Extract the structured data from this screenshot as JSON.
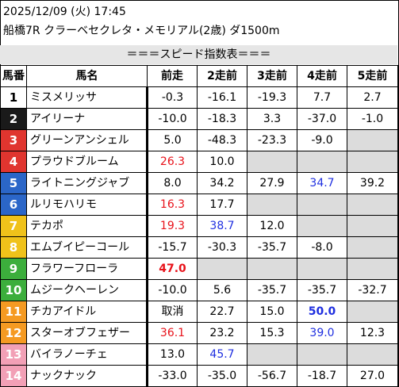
{
  "header": {
    "datetime": "2025/12/09 (火) 17:45",
    "race": "船橋7R クラーベセクレタ・メモリアル(2歳) ダ1500m"
  },
  "banner": "＝＝＝スピード指数表＝＝＝",
  "columns": [
    "馬番",
    "馬名",
    "前走",
    "2走前",
    "3走前",
    "4走前",
    "5走前"
  ],
  "colors": {
    "red": "#e8121a",
    "blue": "#1f2fe0",
    "gray": "#dcdcdc"
  },
  "rows": [
    {
      "num": "1",
      "name": "ミスメリッサ",
      "bg": "#ffffff",
      "fg": "#000000",
      "vals": [
        "-0.3",
        "-16.1",
        "-19.3",
        "7.7",
        "2.7"
      ],
      "styles": [
        "",
        "",
        "",
        "",
        ""
      ]
    },
    {
      "num": "2",
      "name": "アイリーナ",
      "bg": "#1a1a1a",
      "fg": "#ffffff",
      "vals": [
        "-10.0",
        "-18.3",
        "3.3",
        "-37.0",
        "-1.0"
      ],
      "styles": [
        "",
        "",
        "",
        "",
        ""
      ]
    },
    {
      "num": "3",
      "name": "グリーンアンシェル",
      "bg": "#e0352f",
      "fg": "#ffffff",
      "vals": [
        "5.0",
        "-48.3",
        "-23.3",
        "-9.0",
        ""
      ],
      "styles": [
        "",
        "",
        "",
        "",
        "gray"
      ]
    },
    {
      "num": "4",
      "name": "プラウドブルーム",
      "bg": "#e0352f",
      "fg": "#ffffff",
      "vals": [
        "26.3",
        "10.0",
        "",
        "",
        ""
      ],
      "styles": [
        "red",
        "",
        "gray",
        "gray",
        "gray"
      ]
    },
    {
      "num": "5",
      "name": "ライトニングジャブ",
      "bg": "#2b66c8",
      "fg": "#ffffff",
      "vals": [
        "8.0",
        "34.2",
        "27.9",
        "34.7",
        "39.2"
      ],
      "styles": [
        "",
        "",
        "",
        "blue",
        ""
      ]
    },
    {
      "num": "6",
      "name": "ルリモハリモ",
      "bg": "#2b66c8",
      "fg": "#ffffff",
      "vals": [
        "16.3",
        "17.7",
        "",
        "",
        ""
      ],
      "styles": [
        "red",
        "",
        "gray",
        "gray",
        "gray"
      ]
    },
    {
      "num": "7",
      "name": "テカポ",
      "bg": "#f0c21a",
      "fg": "#ffffff",
      "vals": [
        "19.3",
        "38.7",
        "12.0",
        "",
        ""
      ],
      "styles": [
        "red",
        "blue",
        "",
        "gray",
        "gray"
      ]
    },
    {
      "num": "8",
      "name": "エムブイピーコール",
      "bg": "#f0c21a",
      "fg": "#ffffff",
      "vals": [
        "-15.7",
        "-30.3",
        "-35.7",
        "-8.0",
        ""
      ],
      "styles": [
        "",
        "",
        "",
        "",
        "gray"
      ]
    },
    {
      "num": "9",
      "name": "フラワーフローラ",
      "bg": "#3cae3c",
      "fg": "#ffffff",
      "vals": [
        "47.0",
        "",
        "",
        "",
        ""
      ],
      "styles": [
        "red bold",
        "gray",
        "gray",
        "gray",
        "gray"
      ]
    },
    {
      "num": "10",
      "name": "ムジークヘーレン",
      "bg": "#3cae3c",
      "fg": "#ffffff",
      "vals": [
        "-10.0",
        "5.6",
        "-35.7",
        "-35.7",
        "-32.7"
      ],
      "styles": [
        "",
        "",
        "",
        "",
        ""
      ]
    },
    {
      "num": "11",
      "name": "チカアイドル",
      "bg": "#f59a22",
      "fg": "#ffffff",
      "vals": [
        "取消",
        "22.7",
        "15.0",
        "50.0",
        ""
      ],
      "styles": [
        "",
        "",
        "",
        "blue bold",
        "gray"
      ]
    },
    {
      "num": "12",
      "name": "スターオブフェザー",
      "bg": "#f59a22",
      "fg": "#ffffff",
      "vals": [
        "36.1",
        "23.2",
        "15.3",
        "39.0",
        "12.3"
      ],
      "styles": [
        "red",
        "",
        "",
        "blue",
        ""
      ]
    },
    {
      "num": "13",
      "name": "バイラノーチェ",
      "bg": "#f2a0b6",
      "fg": "#ffffff",
      "vals": [
        "13.0",
        "45.7",
        "",
        "",
        ""
      ],
      "styles": [
        "",
        "blue",
        "gray",
        "gray",
        "gray"
      ]
    },
    {
      "num": "14",
      "name": "ナックナック",
      "bg": "#f2a0b6",
      "fg": "#ffffff",
      "vals": [
        "-33.0",
        "-35.0",
        "-56.7",
        "-18.7",
        "27.0"
      ],
      "styles": [
        "",
        "",
        "",
        "",
        ""
      ]
    }
  ]
}
